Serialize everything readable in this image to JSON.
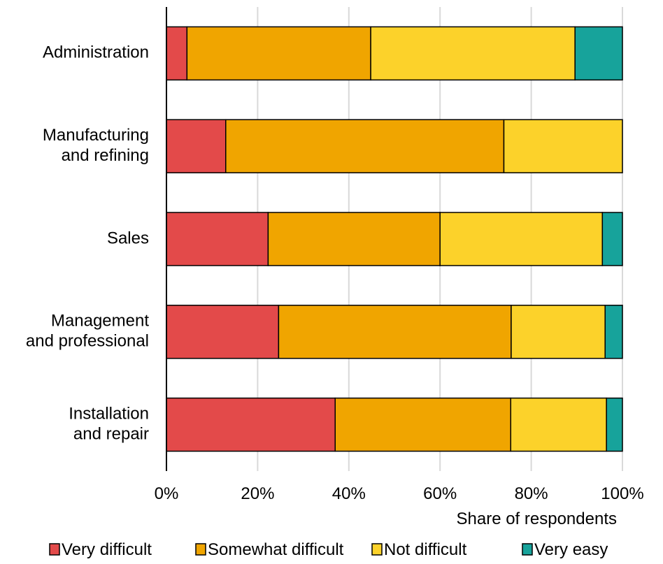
{
  "chart_data": {
    "type": "bar",
    "orientation": "horizontal",
    "stacked": true,
    "categories": [
      [
        "Administration"
      ],
      [
        "Manufacturing",
        "and refining"
      ],
      [
        "Sales"
      ],
      [
        "Management",
        "and professional"
      ],
      [
        "Installation",
        "and repair"
      ]
    ],
    "series": [
      {
        "name": "Very difficult",
        "color": "#E34A4A",
        "values": [
          4.5,
          13,
          22.3,
          24.6,
          37
        ]
      },
      {
        "name": "Somewhat difficult",
        "color": "#F0A500",
        "values": [
          40.3,
          61,
          37.7,
          51,
          38.5
        ]
      },
      {
        "name": "Not difficult",
        "color": "#FCD22A",
        "values": [
          44.8,
          26,
          35.6,
          20.6,
          21
        ]
      },
      {
        "name": "Very easy",
        "color": "#17A39B",
        "values": [
          10.4,
          0,
          4.4,
          3.8,
          3.5
        ]
      }
    ],
    "xlabel": "Share of respondents",
    "xlim": [
      0,
      100
    ],
    "xticks": [
      "0%",
      "20%",
      "40%",
      "60%",
      "80%",
      "100%"
    ],
    "grid": "vertical",
    "legend": "bottom"
  }
}
